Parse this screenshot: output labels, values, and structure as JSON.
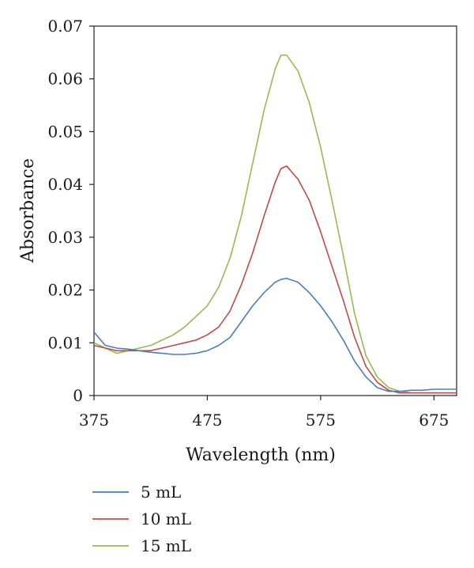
{
  "chart_data": {
    "type": "line",
    "xlabel": "Wavelength (nm)",
    "ylabel": "Absorbance",
    "xlim": [
      375,
      695
    ],
    "ylim": [
      0,
      0.07
    ],
    "xticks": [
      "375",
      "475",
      "575",
      "675"
    ],
    "yticks": [
      "0",
      "0.01",
      "0.02",
      "0.03",
      "0.04",
      "0.05",
      "0.06",
      "0.07"
    ],
    "grid": false,
    "legend_position": "bottom-left",
    "series": [
      {
        "name": "5 mL",
        "color": "#4a7ebb",
        "x": [
          375,
          385,
          395,
          405,
          415,
          425,
          435,
          445,
          455,
          465,
          475,
          485,
          495,
          505,
          515,
          525,
          535,
          540,
          545,
          555,
          565,
          575,
          585,
          595,
          605,
          615,
          625,
          635,
          645,
          655,
          665,
          675,
          685,
          695
        ],
        "y": [
          0.012,
          0.0095,
          0.009,
          0.0088,
          0.0085,
          0.0082,
          0.008,
          0.0078,
          0.0078,
          0.008,
          0.0085,
          0.0095,
          0.011,
          0.014,
          0.017,
          0.0195,
          0.0215,
          0.022,
          0.0222,
          0.0215,
          0.0195,
          0.017,
          0.014,
          0.0105,
          0.0065,
          0.0035,
          0.0015,
          0.0008,
          0.0008,
          0.001,
          0.001,
          0.0012,
          0.0012,
          0.0012
        ]
      },
      {
        "name": "10 mL",
        "color": "#be4b48",
        "x": [
          375,
          385,
          395,
          405,
          415,
          425,
          435,
          445,
          455,
          465,
          475,
          485,
          495,
          505,
          515,
          525,
          535,
          540,
          545,
          555,
          565,
          575,
          585,
          595,
          605,
          615,
          625,
          635,
          645,
          655,
          665,
          675,
          685,
          695
        ],
        "y": [
          0.0095,
          0.009,
          0.0085,
          0.0085,
          0.0085,
          0.0085,
          0.009,
          0.0095,
          0.01,
          0.0105,
          0.0115,
          0.013,
          0.016,
          0.021,
          0.027,
          0.034,
          0.0405,
          0.043,
          0.0435,
          0.041,
          0.037,
          0.031,
          0.0245,
          0.018,
          0.011,
          0.0055,
          0.0025,
          0.001,
          0.0005,
          0.0005,
          0.0005,
          0.0005,
          0.0005,
          0.0005
        ]
      },
      {
        "name": "15 mL",
        "color": "#98b954",
        "x": [
          375,
          385,
          395,
          405,
          415,
          425,
          435,
          445,
          455,
          465,
          475,
          485,
          495,
          505,
          515,
          525,
          535,
          540,
          545,
          555,
          565,
          575,
          585,
          595,
          605,
          615,
          625,
          635,
          645,
          655,
          665,
          675,
          685,
          695
        ],
        "y": [
          0.01,
          0.009,
          0.008,
          0.0085,
          0.009,
          0.0095,
          0.0105,
          0.0115,
          0.013,
          0.015,
          0.017,
          0.0205,
          0.026,
          0.034,
          0.044,
          0.054,
          0.062,
          0.0645,
          0.0645,
          0.0615,
          0.0555,
          0.047,
          0.037,
          0.0265,
          0.0155,
          0.0075,
          0.0035,
          0.0015,
          0.0008,
          0.0005,
          0.0005,
          0.0005,
          0.0005,
          0.0005
        ]
      }
    ]
  }
}
